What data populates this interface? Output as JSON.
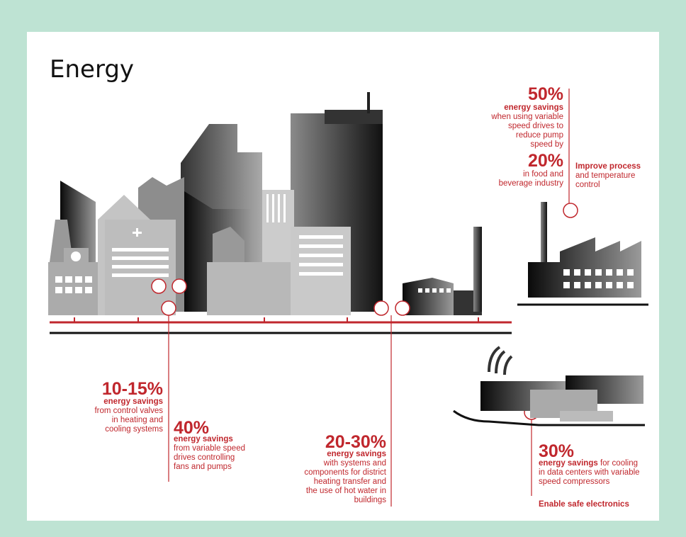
{
  "title": "Energy",
  "callouts": [
    {
      "headline": "50%",
      "subhead": "energy savings",
      "lines": [
        "when using variable",
        "speed drives to",
        "reduce pump",
        "speed by"
      ],
      "headline2": "20%",
      "lines2": [
        "in food and",
        "beverage industry"
      ]
    },
    {
      "subhead": "Improve process",
      "lines": [
        "and temperature",
        "control"
      ]
    },
    {
      "headline": "10-15%",
      "subhead": "energy savings",
      "lines": [
        "from control valves",
        "in heating and",
        "cooling systems"
      ]
    },
    {
      "headline": "40%",
      "subhead": "energy savings",
      "lines": [
        "from variable speed",
        "drives controlling",
        "fans and pumps"
      ]
    },
    {
      "headline": "20-30%",
      "subhead": "energy savings",
      "lines": [
        "with systems and",
        "components for district",
        "heating transfer and",
        "the use of hot water in",
        "buildings"
      ]
    },
    {
      "headline": "30%",
      "subhead": "energy savings",
      "lines": [
        "for cooling",
        "in data centers with variable",
        "speed compressors"
      ]
    },
    {
      "subhead": "Enable safe electronics"
    }
  ]
}
